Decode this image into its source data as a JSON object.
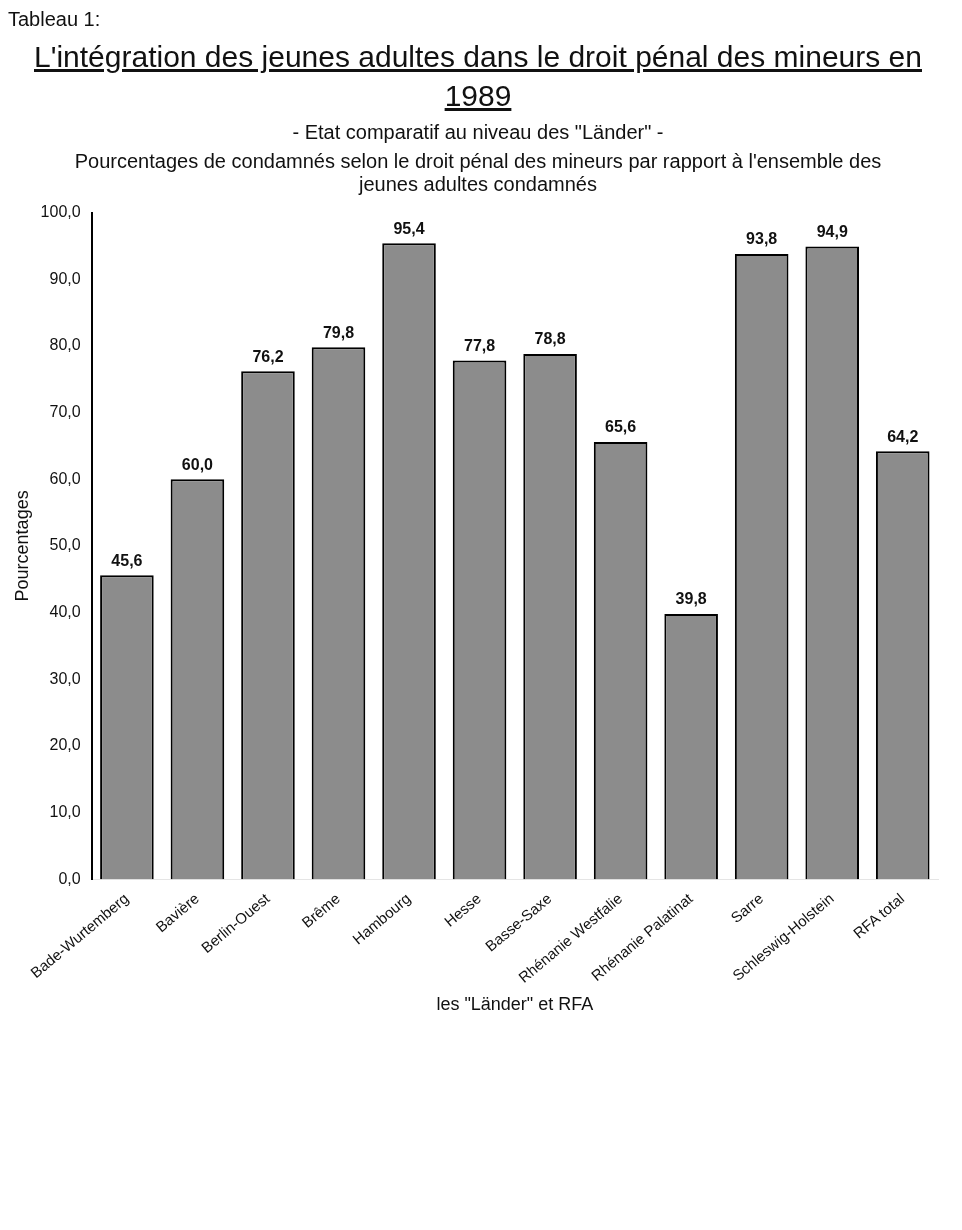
{
  "chart_data": {
    "type": "bar",
    "title": "L'intégration des jeunes adultes dans le droit pénal des mineurs en 1989",
    "subtitle": "- Etat comparatif au niveau des \"Länder\" -",
    "annotations": [
      "Tableau 1:",
      "Pourcentages de condamnés selon le droit pénal des mineurs par rapport à l'ensemble des jeunes adultes condamnés"
    ],
    "ylabel": "Pourcentages",
    "xlabel": "les \"Länder\" et RFA",
    "categories": [
      "Bade-Wurtemberg",
      "Bavière",
      "Berlin-Ouest",
      "Brême",
      "Hambourg",
      "Hesse",
      "Basse-Saxe",
      "Rhénanie Westfalie",
      "Rhénanie Palatinat",
      "Sarre",
      "Schleswig-Holstein",
      "RFA total"
    ],
    "values": [
      45.6,
      60.0,
      76.2,
      79.8,
      95.4,
      77.8,
      78.8,
      65.6,
      39.8,
      93.8,
      94.9,
      64.2
    ],
    "value_labels": [
      "45,6",
      "60,0",
      "76,2",
      "79,8",
      "95,4",
      "77,8",
      "78,8",
      "65,6",
      "39,8",
      "93,8",
      "94,9",
      "64,2"
    ],
    "color": "#8c8c8c",
    "ylim": [
      0,
      100
    ],
    "yticks": [
      {
        "value": 0,
        "label": "0,0"
      },
      {
        "value": 10,
        "label": "10,0"
      },
      {
        "value": 20,
        "label": "20,0"
      },
      {
        "value": 30,
        "label": "30,0"
      },
      {
        "value": 40,
        "label": "40,0"
      },
      {
        "value": 50,
        "label": "50,0"
      },
      {
        "value": 60,
        "label": "60,0"
      },
      {
        "value": 70,
        "label": "70,0"
      },
      {
        "value": 80,
        "label": "80,0"
      },
      {
        "value": 90,
        "label": "90,0"
      },
      {
        "value": 100,
        "label": "100,0"
      }
    ],
    "grid": false,
    "legend": false
  }
}
